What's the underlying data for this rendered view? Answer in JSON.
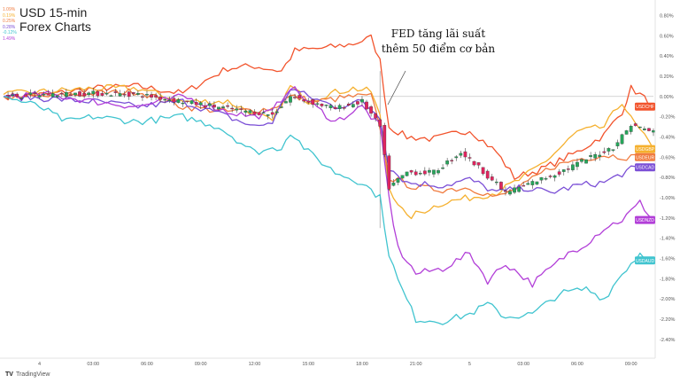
{
  "title": {
    "line1": "USD 15-min",
    "line2": "Forex Charts"
  },
  "mini_values": [
    {
      "text": "1.09%",
      "color": "#f07b3f"
    },
    {
      "text": "0.19%",
      "color": "#f5b02e"
    },
    {
      "text": "0.25%",
      "color": "#f07b3f"
    },
    {
      "text": "0.28%",
      "color": "#7b4fd6"
    },
    {
      "text": "-0.12%",
      "color": "#40c4cf"
    },
    {
      "text": "1.49%",
      "color": "#b23fd8"
    }
  ],
  "annotation": {
    "line1": "FED tăng lãi suất",
    "line2": "thêm 50 điểm cơ bản"
  },
  "brand": {
    "icon": "TV",
    "name": "TradingView"
  },
  "colors": {
    "USDCHF": "#f2542d",
    "USDGBP": "#f5b02e",
    "USDEUR": "#f07b3f",
    "USDCAD": "#7b4fd6",
    "USDNZD": "#b23fd8",
    "USDAUD": "#40c4cf",
    "candle_up": "#26a65b",
    "candle_down": "#e0245e"
  },
  "chart_data": {
    "type": "line",
    "x_tick_labels": [
      "4",
      "03:00",
      "06:00",
      "09:00",
      "12:00",
      "15:00",
      "18:00",
      "21:00",
      "5",
      "03:00",
      "06:00",
      "09:00"
    ],
    "x_tick_index": [
      8,
      20,
      32,
      44,
      56,
      68,
      80,
      92,
      104,
      116,
      128,
      140
    ],
    "y_tick_labels": [
      "0.80%",
      "0.60%",
      "0.40%",
      "0.20%",
      "0.00%",
      "-0.20%",
      "-0.40%",
      "-0.60%",
      "-0.80%",
      "-1.00%",
      "-1.20%",
      "-1.40%",
      "-1.60%",
      "-1.80%",
      "-2.00%",
      "-2.20%",
      "-2.40%"
    ],
    "y_ticks": [
      0.8,
      0.6,
      0.4,
      0.2,
      0.0,
      -0.2,
      -0.4,
      -0.6,
      -0.8,
      -1.0,
      -1.2,
      -1.4,
      -1.6,
      -1.8,
      -2.0,
      -2.2,
      -2.4
    ],
    "ylim": [
      -2.55,
      0.9
    ],
    "n_points": 146,
    "event_index": 84,
    "series": [
      {
        "name": "USDCHF",
        "label": "USDCHF",
        "knots": [
          [
            0,
            0.0
          ],
          [
            10,
            0.02
          ],
          [
            20,
            0.08
          ],
          [
            30,
            0.1
          ],
          [
            40,
            0.03
          ],
          [
            50,
            0.28
          ],
          [
            56,
            0.3
          ],
          [
            62,
            0.25
          ],
          [
            65,
            0.45
          ],
          [
            72,
            0.48
          ],
          [
            78,
            0.52
          ],
          [
            82,
            0.58
          ],
          [
            84,
            0.35
          ],
          [
            86,
            -0.3
          ],
          [
            90,
            -0.4
          ],
          [
            96,
            -0.42
          ],
          [
            104,
            -0.33
          ],
          [
            110,
            -0.55
          ],
          [
            114,
            -0.8
          ],
          [
            120,
            -0.72
          ],
          [
            128,
            -0.55
          ],
          [
            134,
            -0.38
          ],
          [
            138,
            -0.15
          ],
          [
            140,
            0.08
          ],
          [
            142,
            0.02
          ],
          [
            145,
            -0.1
          ]
        ],
        "last": -0.1
      },
      {
        "name": "USDGBP",
        "label": "USDGBP",
        "knots": [
          [
            0,
            0.02
          ],
          [
            10,
            0.05
          ],
          [
            20,
            0.08
          ],
          [
            30,
            0.08
          ],
          [
            40,
            -0.05
          ],
          [
            50,
            -0.05
          ],
          [
            60,
            -0.25
          ],
          [
            64,
            0.1
          ],
          [
            68,
            -0.05
          ],
          [
            72,
            0.02
          ],
          [
            78,
            0.08
          ],
          [
            82,
            0.05
          ],
          [
            84,
            -0.2
          ],
          [
            86,
            -0.9
          ],
          [
            90,
            -1.2
          ],
          [
            98,
            -1.05
          ],
          [
            104,
            -1.0
          ],
          [
            110,
            -0.95
          ],
          [
            116,
            -0.8
          ],
          [
            122,
            -0.6
          ],
          [
            128,
            -0.35
          ],
          [
            134,
            -0.3
          ],
          [
            138,
            -0.05
          ],
          [
            140,
            -0.22
          ],
          [
            145,
            -0.52
          ]
        ],
        "last": -0.52
      },
      {
        "name": "USDEUR",
        "label": "USDEUR",
        "knots": [
          [
            0,
            0.0
          ],
          [
            10,
            0.0
          ],
          [
            20,
            0.03
          ],
          [
            30,
            0.05
          ],
          [
            40,
            -0.1
          ],
          [
            50,
            -0.15
          ],
          [
            60,
            -0.12
          ],
          [
            64,
            0.0
          ],
          [
            70,
            -0.05
          ],
          [
            78,
            0.0
          ],
          [
            82,
            0.0
          ],
          [
            84,
            -0.3
          ],
          [
            86,
            -0.8
          ],
          [
            92,
            -0.9
          ],
          [
            98,
            -0.92
          ],
          [
            104,
            -0.9
          ],
          [
            110,
            -1.0
          ],
          [
            116,
            -0.88
          ],
          [
            122,
            -0.7
          ],
          [
            128,
            -0.62
          ],
          [
            134,
            -0.58
          ],
          [
            140,
            -0.6
          ],
          [
            145,
            -0.6
          ]
        ],
        "last": -0.6
      },
      {
        "name": "USDCAD",
        "label": "USDCAD",
        "knots": [
          [
            0,
            0.0
          ],
          [
            10,
            -0.02
          ],
          [
            20,
            -0.05
          ],
          [
            30,
            -0.1
          ],
          [
            40,
            -0.05
          ],
          [
            50,
            -0.2
          ],
          [
            56,
            -0.3
          ],
          [
            60,
            -0.25
          ],
          [
            64,
            0.08
          ],
          [
            68,
            0.0
          ],
          [
            74,
            -0.1
          ],
          [
            80,
            -0.05
          ],
          [
            84,
            -0.2
          ],
          [
            86,
            -0.7
          ],
          [
            90,
            -0.85
          ],
          [
            98,
            -0.88
          ],
          [
            104,
            -0.82
          ],
          [
            110,
            -0.95
          ],
          [
            116,
            -0.9
          ],
          [
            122,
            -0.95
          ],
          [
            128,
            -0.88
          ],
          [
            134,
            -0.85
          ],
          [
            140,
            -0.72
          ],
          [
            145,
            -0.7
          ]
        ],
        "last": -0.7
      },
      {
        "name": "USDNZD",
        "label": "USDNZD",
        "knots": [
          [
            0,
            0.0
          ],
          [
            10,
            0.02
          ],
          [
            20,
            -0.05
          ],
          [
            30,
            -0.1
          ],
          [
            40,
            0.0
          ],
          [
            50,
            -0.15
          ],
          [
            56,
            -0.2
          ],
          [
            60,
            -0.15
          ],
          [
            64,
            0.1
          ],
          [
            68,
            -0.05
          ],
          [
            74,
            -0.25
          ],
          [
            80,
            -0.1
          ],
          [
            84,
            -0.3
          ],
          [
            86,
            -1.0
          ],
          [
            88,
            -1.5
          ],
          [
            92,
            -1.75
          ],
          [
            98,
            -1.7
          ],
          [
            104,
            -1.55
          ],
          [
            108,
            -1.82
          ],
          [
            112,
            -1.65
          ],
          [
            118,
            -1.85
          ],
          [
            122,
            -1.7
          ],
          [
            126,
            -1.55
          ],
          [
            130,
            -1.45
          ],
          [
            134,
            -1.3
          ],
          [
            138,
            -1.22
          ],
          [
            142,
            -1.05
          ],
          [
            145,
            -1.22
          ]
        ],
        "last": -1.22
      },
      {
        "name": "USDAUD",
        "label": "USDAUD",
        "knots": [
          [
            0,
            0.0
          ],
          [
            8,
            -0.1
          ],
          [
            14,
            -0.25
          ],
          [
            20,
            -0.2
          ],
          [
            30,
            -0.25
          ],
          [
            40,
            -0.2
          ],
          [
            48,
            -0.3
          ],
          [
            56,
            -0.55
          ],
          [
            62,
            -0.5
          ],
          [
            64,
            -0.35
          ],
          [
            68,
            -0.55
          ],
          [
            74,
            -0.75
          ],
          [
            80,
            -0.85
          ],
          [
            84,
            -1.0
          ],
          [
            86,
            -1.55
          ],
          [
            88,
            -1.82
          ],
          [
            92,
            -2.2
          ],
          [
            98,
            -2.22
          ],
          [
            104,
            -2.15
          ],
          [
            108,
            -2.05
          ],
          [
            112,
            -2.18
          ],
          [
            118,
            -2.15
          ],
          [
            124,
            -1.95
          ],
          [
            130,
            -1.9
          ],
          [
            134,
            -2.0
          ],
          [
            138,
            -1.75
          ],
          [
            142,
            -1.55
          ],
          [
            145,
            -1.62
          ]
        ],
        "last": -1.62
      }
    ],
    "candles_base": [
      [
        0,
        0.0
      ],
      [
        10,
        0.02
      ],
      [
        20,
        0.03
      ],
      [
        30,
        0.02
      ],
      [
        40,
        -0.05
      ],
      [
        50,
        -0.12
      ],
      [
        60,
        -0.18
      ],
      [
        64,
        0.0
      ],
      [
        68,
        -0.05
      ],
      [
        74,
        -0.12
      ],
      [
        80,
        -0.05
      ],
      [
        84,
        -0.3
      ],
      [
        86,
        -0.9
      ],
      [
        90,
        -0.75
      ],
      [
        96,
        -0.75
      ],
      [
        102,
        -0.55
      ],
      [
        106,
        -0.7
      ],
      [
        112,
        -0.95
      ],
      [
        118,
        -0.85
      ],
      [
        124,
        -0.75
      ],
      [
        130,
        -0.62
      ],
      [
        136,
        -0.5
      ],
      [
        140,
        -0.28
      ],
      [
        145,
        -0.35
      ]
    ],
    "grid": false,
    "legend": "right-axis-labels"
  }
}
